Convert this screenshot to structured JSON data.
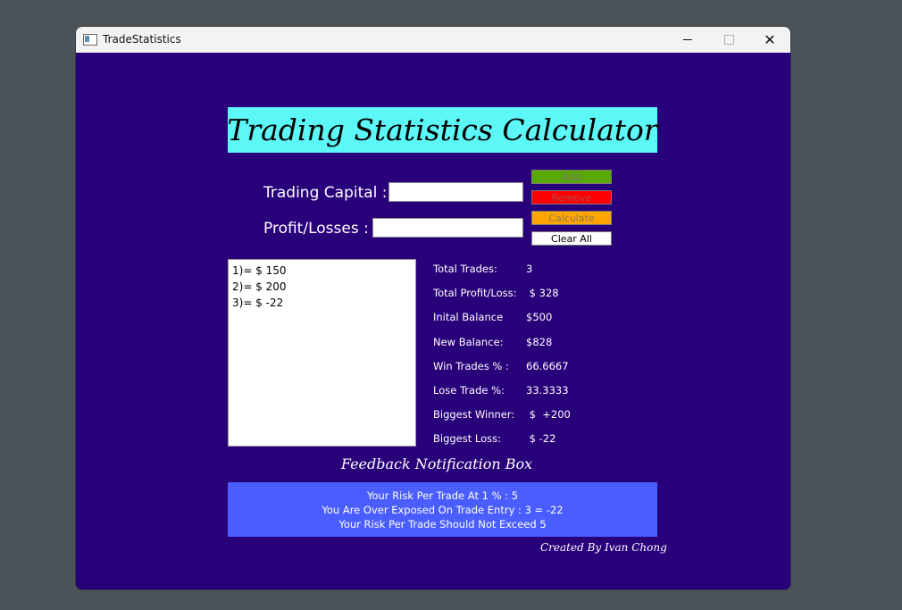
{
  "window": {
    "title": "TradeStatistics",
    "icon": "app-window-icon",
    "controls": {
      "minimize": "minimize-icon",
      "maximize": "maximize-icon",
      "close": "close-icon",
      "close_glyph": "✕"
    }
  },
  "heading": "Trading Statistics Calculator",
  "form": {
    "capital_label": "Trading Capital :",
    "capital_value": "",
    "profit_label": "Profit/Losses :",
    "profit_value": ""
  },
  "buttons": {
    "add": "Add",
    "remove": "Remove",
    "calculate": "Calculate",
    "clear_all": "Clear All"
  },
  "trades": [
    "1)=  $ 150",
    "2)=  $ 200",
    "3)=  $ -22"
  ],
  "stats": [
    {
      "label": "Total Trades:",
      "value": "3"
    },
    {
      "label": "Total Profit/Loss:",
      "value": " $ 328"
    },
    {
      "label": "Inital Balance",
      "value": "$500"
    },
    {
      "label": "New Balance:",
      "value": "$828"
    },
    {
      "label": "Win Trades % :",
      "value": "66.6667"
    },
    {
      "label": "Lose Trade %:",
      "value": "33.3333"
    },
    {
      "label": "Biggest Winner:",
      "value": " $  +200"
    },
    {
      "label": "Biggest Loss:",
      "value": " $ -22"
    }
  ],
  "feedback": {
    "title": "Feedback Notification Box",
    "lines": [
      "Your Risk Per Trade At 1 % :  5",
      "You Are Over Exposed On Trade Entry : 3 = -22",
      "Your Risk Per Trade Should Not Exceed  5"
    ]
  },
  "credit": "Created By Ivan Chong",
  "colors": {
    "window_bg": "#28007a",
    "heading_bg": "#5cf7f7",
    "add_bg": "#58a800",
    "remove_bg": "#ff0000",
    "calculate_bg": "#ffa500",
    "feedback_bg": "#4a5eff"
  }
}
